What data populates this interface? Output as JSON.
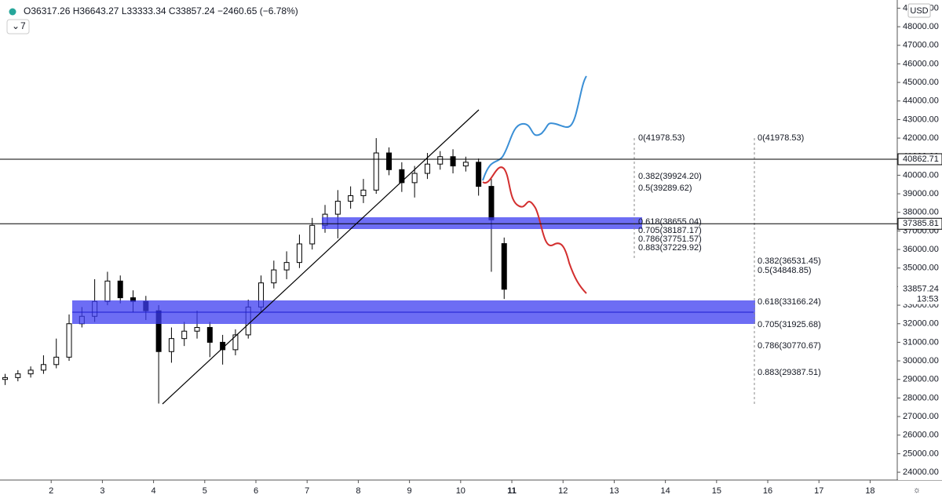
{
  "chart_data": {
    "type": "candlestick",
    "header": {
      "o": "O",
      "h": "H",
      "l": "L",
      "c": "C",
      "change": "−2460.65 (−6.78%)"
    },
    "indicators": "7",
    "currency": "USD",
    "last_price_time": "13:53",
    "candles": {
      "x": [
        1.1,
        1.35,
        1.6,
        1.85,
        2.1,
        2.35,
        2.6,
        2.85,
        3.1,
        3.35,
        3.6,
        3.85,
        4.1,
        4.35,
        4.6,
        4.85,
        5.1,
        5.35,
        5.6,
        5.85,
        6.1,
        6.35,
        6.6,
        6.85,
        7.1,
        7.35,
        7.6,
        7.85,
        8.1,
        8.35,
        8.6,
        8.85,
        9.1,
        9.35,
        9.6,
        9.85,
        10.1,
        10.35,
        10.6,
        10.85
      ],
      "open": [
        29000,
        29100,
        29300,
        29500,
        29800,
        30200,
        32000,
        32400,
        33200,
        34300,
        33400,
        33200,
        32700,
        30500,
        31200,
        31600,
        31800,
        31000,
        30600,
        31400,
        32900,
        34200,
        34900,
        35300,
        36300,
        37300,
        37900,
        38600,
        38900,
        39200,
        41200,
        40300,
        39600,
        40100,
        40600,
        41000,
        40500,
        40700,
        39400,
        36317.26
      ],
      "high": [
        29300,
        29500,
        29700,
        30300,
        31200,
        32500,
        32900,
        34400,
        34800,
        34600,
        33800,
        33500,
        33000,
        31800,
        32100,
        32700,
        32100,
        31400,
        31700,
        33300,
        34600,
        35400,
        35900,
        36800,
        37700,
        38400,
        39200,
        39400,
        39800,
        42000,
        41500,
        40700,
        40500,
        41200,
        41300,
        41400,
        41000,
        40900,
        39800,
        36643.27
      ],
      "low": [
        28700,
        28900,
        29100,
        29300,
        29600,
        30000,
        31800,
        32100,
        33000,
        33100,
        32600,
        32200,
        27700,
        29900,
        30800,
        31200,
        30200,
        29800,
        30300,
        31200,
        32600,
        33900,
        34400,
        35000,
        36000,
        36900,
        36600,
        38200,
        38500,
        39000,
        40000,
        39100,
        38800,
        39800,
        40300,
        40100,
        40200,
        38900,
        34800,
        33333.34
      ],
      "close": [
        29100,
        29300,
        29500,
        29800,
        30200,
        32000,
        32400,
        33200,
        34300,
        33400,
        33200,
        32700,
        30500,
        31200,
        31600,
        31800,
        31000,
        30600,
        31400,
        32900,
        34200,
        34900,
        35300,
        36300,
        37300,
        37900,
        38600,
        38900,
        39200,
        41200,
        40300,
        39600,
        40100,
        40600,
        41000,
        40500,
        40700,
        39400,
        37600,
        33857.24
      ]
    },
    "xlim": [
      1.0,
      18.53
    ],
    "xticks": [
      2,
      3,
      4,
      5,
      6,
      7,
      8,
      9,
      10,
      11,
      12,
      13,
      14,
      15,
      16,
      17,
      18
    ],
    "highlight_xtick": 11,
    "ylim": [
      23580,
      49440
    ],
    "yticks": [
      {
        "value": 24000,
        "label": "24000.00"
      },
      {
        "value": 25000,
        "label": "25000.00"
      },
      {
        "value": 26000,
        "label": "26000.00"
      },
      {
        "value": 27000,
        "label": "27000.00"
      },
      {
        "value": 28000,
        "label": "28000.00"
      },
      {
        "value": 29000,
        "label": "29000.00"
      },
      {
        "value": 30000,
        "label": "30000.00"
      },
      {
        "value": 31000,
        "label": "31000.00"
      },
      {
        "value": 32000,
        "label": "32000.00"
      },
      {
        "value": 33000,
        "label": "33000.00"
      },
      {
        "value": 34000,
        "label": "34000.00"
      },
      {
        "value": 35000,
        "label": "35000.00"
      },
      {
        "value": 36000,
        "label": "36000.00"
      },
      {
        "value": 37000,
        "label": "37000.00"
      },
      {
        "value": 38000,
        "label": "38000.00"
      },
      {
        "value": 39000,
        "label": "39000.00"
      },
      {
        "value": 40000,
        "label": "40000.00"
      },
      {
        "value": 41000,
        "label": "41000.00"
      },
      {
        "value": 42000,
        "label": "42000.00"
      },
      {
        "value": 43000,
        "label": "43000.00"
      },
      {
        "value": 44000,
        "label": "44000.00"
      },
      {
        "value": 45000,
        "label": "45000.00"
      },
      {
        "value": 46000,
        "label": "46000.00"
      },
      {
        "value": 47000,
        "label": "47000.00"
      },
      {
        "value": 48000,
        "label": "48000.00"
      },
      {
        "value": 49000,
        "label": "49000.00"
      }
    ],
    "levels": [
      40862.71,
      37385.81
    ],
    "fib_labels_1": [
      "0(41978.53)",
      "0.382(39924.20)",
      "0.5(39289.62)",
      "0.618(38655.04)",
      "0.705(38187.17)",
      "0.786(37751.57)",
      "0.883(37229.92)"
    ],
    "fib_labels_2": [
      "0(41978.53)",
      "0.382(36531.45)",
      "0.5(34848.85)",
      "0.618(33166.24)",
      "0.705(31925.68)",
      "0.786(30770.67)",
      "0.883(29387.51)"
    ],
    "grid": false
  }
}
